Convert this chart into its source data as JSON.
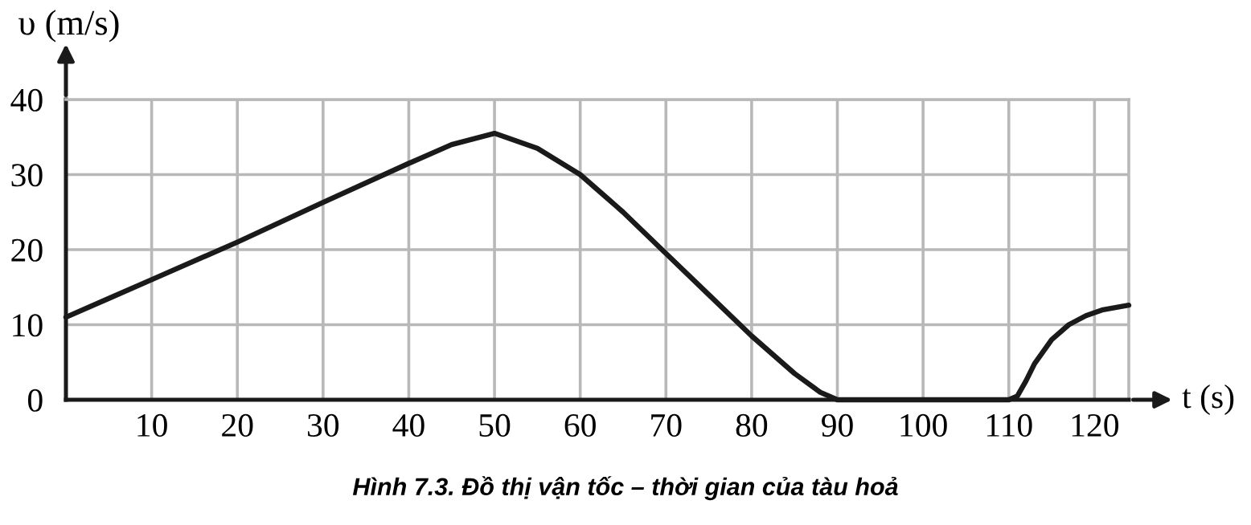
{
  "chart_data": {
    "type": "line",
    "xlabel": "t (s)",
    "ylabel": "υ (m/s)",
    "annotations": [
      "Hình 7.3. Đồ thị vận tốc – thời gian của tàu hoả"
    ],
    "x": [
      0,
      5,
      10,
      20,
      30,
      40,
      45,
      50,
      55,
      60,
      65,
      70,
      75,
      80,
      85,
      88,
      90,
      100,
      110,
      111,
      112,
      113,
      115,
      117,
      119,
      121,
      124
    ],
    "series": [
      {
        "color": "#1a1a1a",
        "values": [
          11,
          13.5,
          16,
          21,
          26.3,
          31.5,
          34,
          35.5,
          33.5,
          30,
          25,
          19.5,
          14,
          8.5,
          3.5,
          1,
          0,
          0,
          0,
          0.5,
          2.5,
          4.8,
          8,
          10,
          11.2,
          12,
          12.6
        ]
      }
    ],
    "xlim": [
      0,
      124
    ],
    "ylim": [
      0,
      40
    ],
    "xticks": [
      10,
      20,
      30,
      40,
      50,
      60,
      70,
      80,
      90,
      100,
      110,
      120
    ],
    "yticks": [
      0,
      10,
      20,
      30,
      40
    ],
    "grid": true,
    "marker": "none",
    "line_style": "solid",
    "legend": false
  }
}
